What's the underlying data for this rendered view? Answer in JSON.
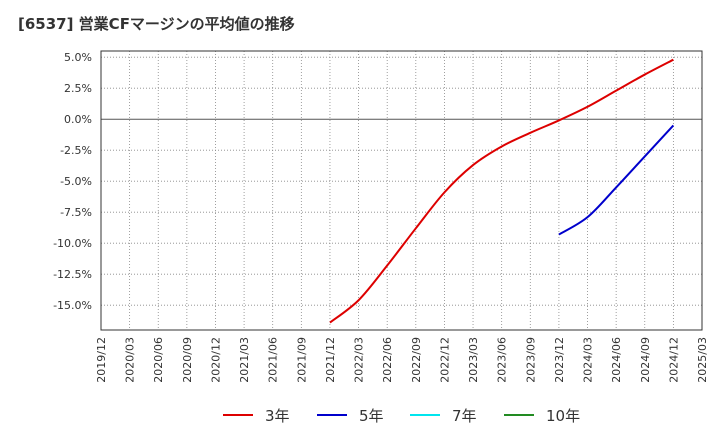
{
  "title": "[6537]  営業CFマージンの平均値の推移",
  "chart_data": {
    "type": "line",
    "title": "[6537]  営業CFマージンの平均値の推移",
    "xlabel": "",
    "ylabel": "",
    "ylim": [
      -17.0,
      5.5
    ],
    "yticks": [
      5.0,
      2.5,
      0.0,
      -2.5,
      -5.0,
      -7.5,
      -10.0,
      -12.5,
      -15.0
    ],
    "ytick_labels": [
      "5.0%",
      "2.5%",
      "0.0%",
      "-2.5%",
      "-5.0%",
      "-7.5%",
      "-10.0%",
      "-12.5%",
      "-15.0%"
    ],
    "xticks": [
      "2019/12",
      "2020/03",
      "2020/06",
      "2020/09",
      "2020/12",
      "2021/03",
      "2021/06",
      "2021/09",
      "2021/12",
      "2022/03",
      "2022/06",
      "2022/09",
      "2022/12",
      "2023/03",
      "2023/06",
      "2023/09",
      "2023/12",
      "2024/03",
      "2024/06",
      "2024/09",
      "2024/12",
      "2025/03"
    ],
    "grid": true,
    "legend_position": "bottom",
    "series": [
      {
        "name": "3年",
        "color": "#dd0000",
        "points": [
          [
            "2021/12",
            -16.4
          ],
          [
            "2022/03",
            -14.6
          ],
          [
            "2022/06",
            -11.8
          ],
          [
            "2022/09",
            -8.8
          ],
          [
            "2022/12",
            -5.9
          ],
          [
            "2023/03",
            -3.7
          ],
          [
            "2023/06",
            -2.2
          ],
          [
            "2023/09",
            -1.1
          ],
          [
            "2023/12",
            -0.1
          ],
          [
            "2024/03",
            1.0
          ],
          [
            "2024/06",
            2.3
          ],
          [
            "2024/09",
            3.6
          ],
          [
            "2024/12",
            4.8
          ]
        ]
      },
      {
        "name": "5年",
        "color": "#0000cc",
        "points": [
          [
            "2023/12",
            -9.3
          ],
          [
            "2024/03",
            -7.9
          ],
          [
            "2024/06",
            -5.5
          ],
          [
            "2024/09",
            -3.0
          ],
          [
            "2024/12",
            -0.5
          ]
        ]
      },
      {
        "name": "7年",
        "color": "#00e5ee",
        "points": []
      },
      {
        "name": "10年",
        "color": "#228b22",
        "points": []
      }
    ]
  }
}
